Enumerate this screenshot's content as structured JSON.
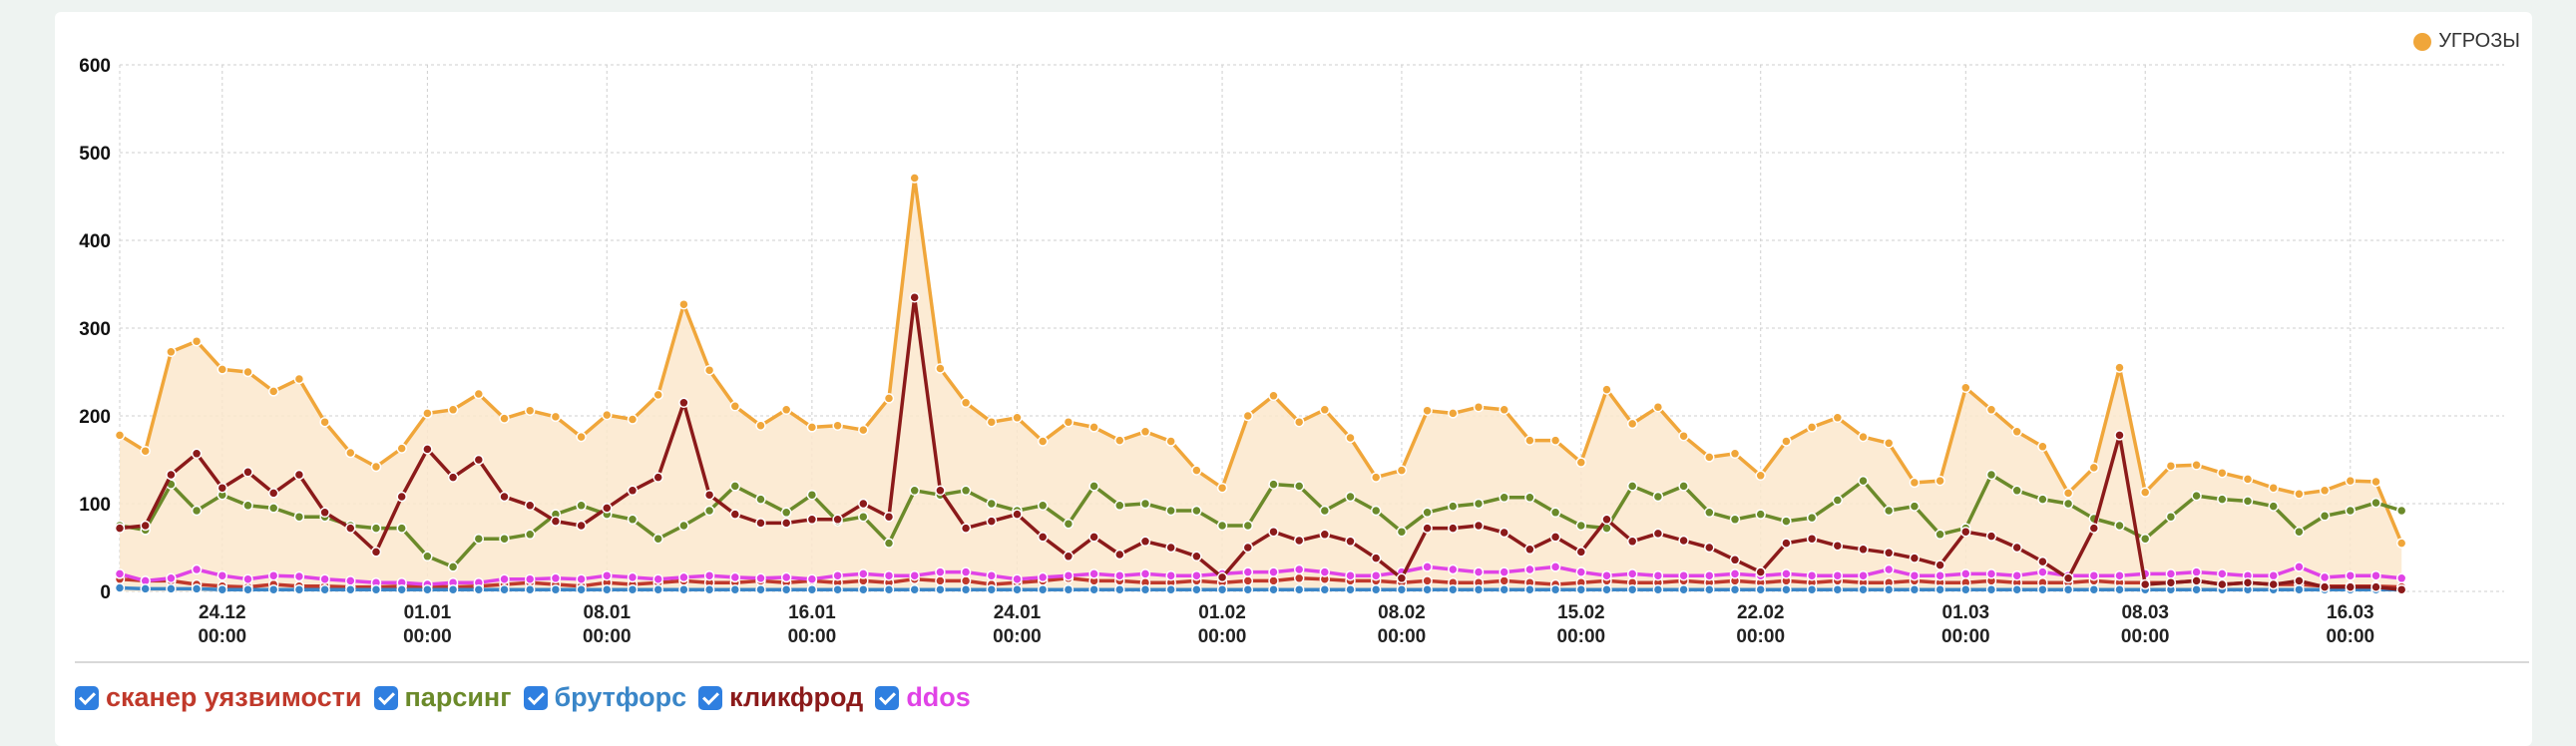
{
  "chart_data": {
    "type": "line",
    "ylim": [
      0,
      600
    ],
    "yticks": [
      0,
      100,
      200,
      300,
      400,
      500,
      600
    ],
    "x_start": "2023-12-20",
    "x_end": "2024-03-22",
    "x_ticks": [
      {
        "date": "2023-12-24",
        "line1": "24.12",
        "line2": "00:00"
      },
      {
        "date": "2024-01-01",
        "line1": "01.01",
        "line2": "00:00"
      },
      {
        "date": "2024-01-08",
        "line1": "08.01",
        "line2": "00:00"
      },
      {
        "date": "2024-01-16",
        "line1": "16.01",
        "line2": "00:00"
      },
      {
        "date": "2024-01-24",
        "line1": "24.01",
        "line2": "00:00"
      },
      {
        "date": "2024-02-01",
        "line1": "01.02",
        "line2": "00:00"
      },
      {
        "date": "2024-02-08",
        "line1": "08.02",
        "line2": "00:00"
      },
      {
        "date": "2024-02-15",
        "line1": "15.02",
        "line2": "00:00"
      },
      {
        "date": "2024-02-22",
        "line1": "22.02",
        "line2": "00:00"
      },
      {
        "date": "2024-03-01",
        "line1": "01.03",
        "line2": "00:00"
      },
      {
        "date": "2024-03-08",
        "line1": "08.03",
        "line2": "00:00"
      },
      {
        "date": "2024-03-16",
        "line1": "16.03",
        "line2": "00:00"
      }
    ],
    "grid": true,
    "legend": "top-right",
    "series": [
      {
        "name": "УГРОЗЫ",
        "color": "#f0a63a",
        "fill": true,
        "values": [
          178,
          160,
          273,
          285,
          253,
          250,
          228,
          242,
          193,
          158,
          142,
          163,
          203,
          207,
          225,
          197,
          206,
          199,
          176,
          201,
          196,
          224,
          327,
          252,
          211,
          189,
          207,
          187,
          189,
          184,
          220,
          471,
          254,
          215,
          193,
          198,
          171,
          193,
          187,
          172,
          182,
          171,
          138,
          118,
          200,
          223,
          193,
          207,
          175,
          130,
          138,
          206,
          203,
          210,
          207,
          172,
          172,
          147,
          230,
          191,
          210,
          177,
          153,
          157,
          132,
          171,
          187,
          198,
          176,
          169,
          124,
          126,
          232,
          207,
          182,
          165,
          112,
          141,
          255,
          113,
          143,
          144,
          135,
          128,
          118,
          111,
          115,
          126,
          125,
          55
        ]
      },
      {
        "name": "сканер уязвимости",
        "color": "#c0392b",
        "fill": false,
        "values": [
          14,
          12,
          12,
          8,
          6,
          5,
          8,
          6,
          6,
          5,
          5,
          6,
          6,
          5,
          6,
          8,
          10,
          8,
          6,
          10,
          8,
          10,
          12,
          10,
          10,
          12,
          10,
          12,
          10,
          12,
          10,
          14,
          12,
          12,
          8,
          10,
          12,
          15,
          12,
          12,
          10,
          10,
          12,
          10,
          12,
          12,
          15,
          14,
          12,
          12,
          10,
          12,
          10,
          10,
          12,
          10,
          8,
          10,
          12,
          10,
          10,
          12,
          10,
          12,
          10,
          12,
          10,
          12,
          10,
          10,
          12,
          10,
          10,
          12,
          10,
          10,
          10,
          12,
          10,
          10,
          10,
          12,
          8,
          10,
          8,
          8,
          6,
          6,
          6,
          5
        ]
      },
      {
        "name": "парсинг",
        "color": "#6b8a2a",
        "fill": false,
        "values": [
          75,
          70,
          122,
          92,
          110,
          98,
          95,
          85,
          85,
          75,
          72,
          72,
          40,
          28,
          60,
          60,
          65,
          88,
          98,
          88,
          82,
          60,
          75,
          92,
          120,
          105,
          90,
          110,
          80,
          85,
          55,
          115,
          110,
          115,
          100,
          92,
          98,
          77,
          120,
          98,
          100,
          92,
          92,
          75,
          75,
          122,
          120,
          92,
          108,
          92,
          68,
          90,
          97,
          100,
          107,
          107,
          90,
          75,
          72,
          120,
          108,
          120,
          90,
          82,
          88,
          80,
          84,
          104,
          126,
          92,
          97,
          65,
          72,
          133,
          115,
          105,
          100,
          83,
          75,
          60,
          85,
          109,
          105,
          103,
          97,
          68,
          86,
          92,
          101,
          92
        ]
      },
      {
        "name": "брутфорс",
        "color": "#3a86c8",
        "fill": false,
        "values": [
          4,
          3,
          3,
          3,
          2,
          2,
          2,
          2,
          2,
          2,
          2,
          2,
          2,
          2,
          2,
          2,
          2,
          2,
          2,
          2,
          2,
          2,
          2,
          2,
          2,
          2,
          2,
          2,
          2,
          2,
          2,
          2,
          2,
          2,
          2,
          2,
          2,
          2,
          2,
          2,
          2,
          2,
          2,
          2,
          2,
          2,
          2,
          2,
          2,
          2,
          2,
          2,
          2,
          2,
          2,
          2,
          2,
          2,
          2,
          2,
          2,
          2,
          2,
          2,
          2,
          2,
          2,
          2,
          2,
          2,
          2,
          2,
          2,
          2,
          2,
          2,
          2,
          2,
          2,
          2,
          2,
          2,
          2,
          2,
          2,
          2,
          2,
          2,
          2,
          2
        ]
      },
      {
        "name": "кликфрод",
        "color": "#8b1a1a",
        "fill": false,
        "values": [
          72,
          75,
          133,
          157,
          118,
          136,
          112,
          133,
          90,
          72,
          45,
          108,
          162,
          130,
          150,
          108,
          98,
          80,
          75,
          95,
          115,
          130,
          215,
          110,
          88,
          78,
          78,
          82,
          82,
          100,
          85,
          335,
          115,
          72,
          80,
          88,
          62,
          40,
          62,
          42,
          57,
          50,
          40,
          16,
          50,
          68,
          58,
          65,
          57,
          38,
          15,
          72,
          72,
          75,
          67,
          48,
          62,
          45,
          82,
          57,
          66,
          58,
          50,
          36,
          22,
          55,
          60,
          52,
          48,
          44,
          38,
          30,
          68,
          63,
          50,
          34,
          15,
          72,
          178,
          8,
          10,
          12,
          8,
          10,
          8,
          12,
          5,
          5,
          5,
          2
        ]
      },
      {
        "name": "ddos",
        "color": "#e043e6",
        "fill": false,
        "values": [
          20,
          12,
          15,
          25,
          18,
          14,
          18,
          17,
          14,
          12,
          10,
          10,
          8,
          10,
          10,
          14,
          14,
          15,
          14,
          18,
          16,
          14,
          16,
          18,
          16,
          15,
          16,
          14,
          18,
          20,
          18,
          18,
          22,
          22,
          18,
          14,
          16,
          18,
          20,
          18,
          20,
          18,
          18,
          20,
          22,
          22,
          25,
          22,
          18,
          18,
          22,
          28,
          25,
          22,
          22,
          25,
          28,
          22,
          18,
          20,
          18,
          18,
          18,
          20,
          18,
          20,
          18,
          18,
          18,
          25,
          18,
          18,
          20,
          20,
          18,
          22,
          18,
          18,
          18,
          20,
          20,
          22,
          20,
          18,
          18,
          28,
          16,
          18,
          18,
          15
        ]
      }
    ]
  },
  "legend_top": {
    "label": "УГРОЗЫ",
    "color": "#f0a63a"
  },
  "filters": [
    {
      "label": "сканер уязвимости",
      "color": "#c0392b"
    },
    {
      "label": "парсинг",
      "color": "#6b8a2a"
    },
    {
      "label": "брутфорс",
      "color": "#3a86c8"
    },
    {
      "label": "кликфрод",
      "color": "#8b1a1a"
    },
    {
      "label": "ddos",
      "color": "#e043e6"
    }
  ]
}
